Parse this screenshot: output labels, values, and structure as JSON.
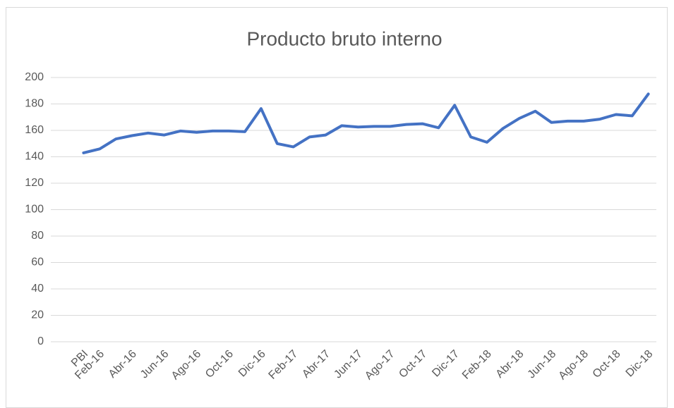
{
  "chart_data": {
    "type": "line",
    "title": "Producto bruto interno",
    "categories": [
      "PBI",
      "Feb-16",
      null,
      "Abr-16",
      null,
      "Jun-16",
      null,
      "Ago-16",
      null,
      "Oct-16",
      null,
      "Dic-16",
      null,
      "Feb-17",
      null,
      "Abr-17",
      null,
      "Jun-17",
      null,
      "Ago-17",
      null,
      "Oct-17",
      null,
      "Dic-17",
      null,
      "Feb-18",
      null,
      "Abr-18",
      null,
      "Jun-18",
      null,
      "Ago-18",
      null,
      "Oct-18",
      null,
      "Dic-18"
    ],
    "values": [
      143,
      146,
      153.5,
      156,
      158,
      156.5,
      159.5,
      158.5,
      159.5,
      159.5,
      159,
      176.5,
      150,
      147.5,
      155,
      156.5,
      163.5,
      162.5,
      163,
      163,
      164.5,
      165,
      162,
      179,
      155,
      151,
      161.5,
      169,
      174.5,
      166,
      167,
      167,
      168.5,
      172,
      171,
      187.5
    ],
    "color": "#4472c4",
    "ylim": [
      0,
      200
    ],
    "yticks": [
      0,
      20,
      40,
      60,
      80,
      100,
      120,
      140,
      160,
      180,
      200
    ],
    "grid": true
  }
}
